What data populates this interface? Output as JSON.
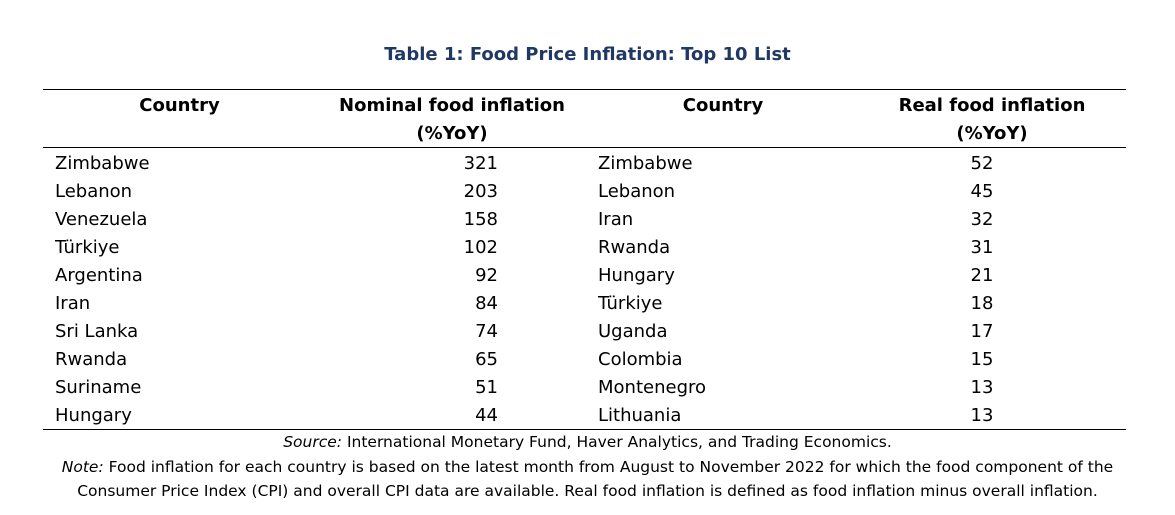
{
  "table": {
    "title": "Table 1: Food Price Inflation: Top 10 List",
    "headers": {
      "col1": "Country",
      "col2_line1": "Nominal food inflation",
      "col2_line2": "(%YoY)",
      "col3": "Country",
      "col4_line1": "Real food inflation",
      "col4_line2": "(%YoY)"
    },
    "rows": [
      {
        "nominal_country": "Zimbabwe",
        "nominal_value": "321",
        "real_country": "Zimbabwe",
        "real_value": "52"
      },
      {
        "nominal_country": "Lebanon",
        "nominal_value": "203",
        "real_country": "Lebanon",
        "real_value": "45"
      },
      {
        "nominal_country": "Venezuela",
        "nominal_value": "158",
        "real_country": "Iran",
        "real_value": "32"
      },
      {
        "nominal_country": "Türkiye",
        "nominal_value": "102",
        "real_country": "Rwanda",
        "real_value": "31"
      },
      {
        "nominal_country": "Argentina",
        "nominal_value": "92",
        "real_country": "Hungary",
        "real_value": "21"
      },
      {
        "nominal_country": "Iran",
        "nominal_value": "84",
        "real_country": "Türkiye",
        "real_value": "18"
      },
      {
        "nominal_country": "Sri Lanka",
        "nominal_value": "74",
        "real_country": "Uganda",
        "real_value": "17"
      },
      {
        "nominal_country": "Rwanda",
        "nominal_value": "65",
        "real_country": "Colombia",
        "real_value": "15"
      },
      {
        "nominal_country": "Suriname",
        "nominal_value": "51",
        "real_country": "Montenegro",
        "real_value": "13"
      },
      {
        "nominal_country": "Hungary",
        "nominal_value": "44",
        "real_country": "Lithuania",
        "real_value": "13"
      }
    ]
  },
  "footer": {
    "source_label": "Source:",
    "source_text": " International Monetary Fund, Haver Analytics, and Trading Economics.",
    "note_label": "Note:",
    "note_text_line1": " Food inflation for each country is based on the latest month from August to November 2022 for which the food component of the",
    "note_text_line2": "Consumer Price Index (CPI) and overall CPI data are available. Real food inflation is defined as food inflation minus overall inflation."
  },
  "colors": {
    "title": "#1f3864",
    "text": "#000000",
    "rules": "#000000"
  }
}
